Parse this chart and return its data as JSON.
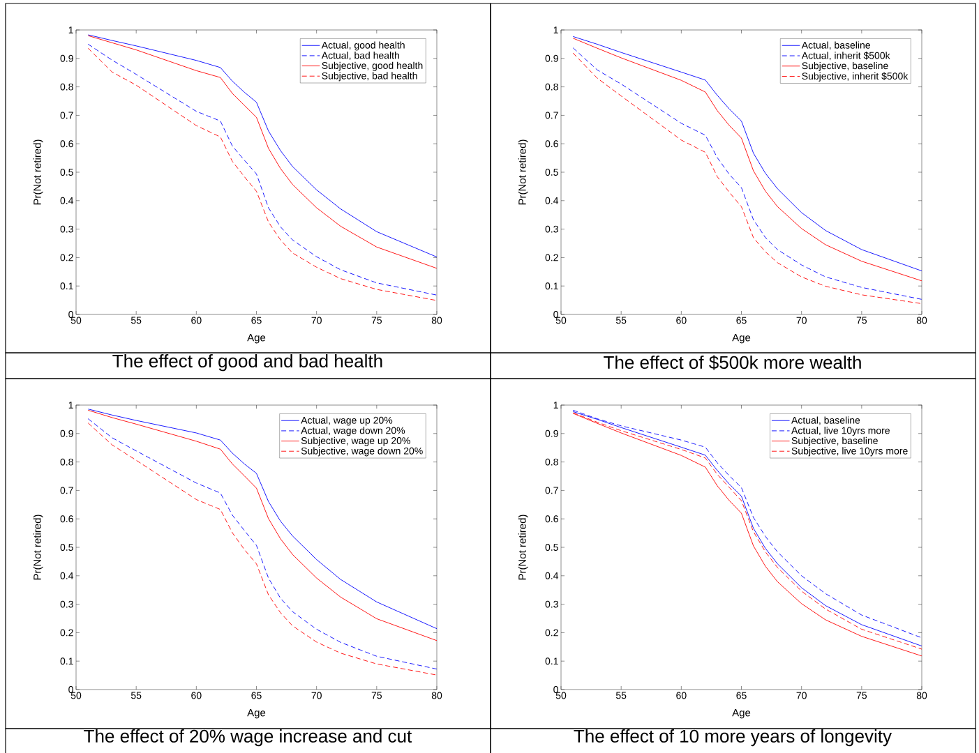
{
  "chart_data": [
    {
      "type": "line",
      "title": "The effect of good and bad health",
      "xlabel": "Age",
      "ylabel": "Pr(Not retired)",
      "xlim": [
        50,
        80
      ],
      "ylim": [
        0,
        1
      ],
      "xticks": [
        50,
        55,
        60,
        65,
        70,
        75,
        80
      ],
      "yticks": [
        0,
        0.1,
        0.2,
        0.3,
        0.4,
        0.5,
        0.6,
        0.7,
        0.8,
        0.9,
        1
      ],
      "legend": "top right",
      "grid": false,
      "x": [
        51,
        53,
        55,
        60,
        62,
        63,
        64,
        65,
        66,
        67,
        68,
        70,
        72,
        75,
        80
      ],
      "series": [
        {
          "name": "Actual, good health",
          "color": "#0000ff",
          "line_style": "solid",
          "values": [
            0.983,
            0.963,
            0.944,
            0.893,
            0.868,
            0.82,
            0.781,
            0.746,
            0.645,
            0.576,
            0.52,
            0.438,
            0.371,
            0.291,
            0.202
          ]
        },
        {
          "name": "Actual, bad health",
          "color": "#0000ff",
          "line_style": "dashed",
          "values": [
            0.95,
            0.894,
            0.844,
            0.714,
            0.68,
            0.592,
            0.542,
            0.494,
            0.375,
            0.308,
            0.262,
            0.203,
            0.157,
            0.111,
            0.068
          ]
        },
        {
          "name": "Subjective, good health",
          "color": "#ff0000",
          "line_style": "solid",
          "values": [
            0.98,
            0.955,
            0.93,
            0.857,
            0.833,
            0.777,
            0.735,
            0.693,
            0.584,
            0.513,
            0.457,
            0.375,
            0.31,
            0.237,
            0.162
          ]
        },
        {
          "name": "Subjective, bad health",
          "color": "#ff0000",
          "line_style": "dashed",
          "values": [
            0.936,
            0.852,
            0.806,
            0.664,
            0.624,
            0.538,
            0.484,
            0.433,
            0.325,
            0.262,
            0.216,
            0.166,
            0.126,
            0.088,
            0.049
          ]
        }
      ]
    },
    {
      "type": "line",
      "title": "The effect of $500k more wealth",
      "xlabel": "Age",
      "ylabel": "Pr(Not retired)",
      "xlim": [
        50,
        80
      ],
      "ylim": [
        0,
        1
      ],
      "xticks": [
        50,
        55,
        60,
        65,
        70,
        75,
        80
      ],
      "yticks": [
        0,
        0.1,
        0.2,
        0.3,
        0.4,
        0.5,
        0.6,
        0.7,
        0.8,
        0.9,
        1
      ],
      "legend": "top right",
      "grid": false,
      "x": [
        51,
        53,
        55,
        60,
        62,
        63,
        64,
        65,
        66,
        67,
        68,
        70,
        72,
        75,
        80
      ],
      "series": [
        {
          "name": "Actual, baseline",
          "color": "#0000ff",
          "line_style": "solid",
          "values": [
            0.977,
            0.95,
            0.921,
            0.852,
            0.824,
            0.77,
            0.722,
            0.68,
            0.567,
            0.496,
            0.442,
            0.358,
            0.295,
            0.228,
            0.153
          ]
        },
        {
          "name": "Actual, inherit $500k",
          "color": "#0000ff",
          "line_style": "dashed",
          "values": [
            0.937,
            0.86,
            0.81,
            0.672,
            0.63,
            0.551,
            0.492,
            0.446,
            0.333,
            0.27,
            0.228,
            0.174,
            0.132,
            0.095,
            0.053
          ]
        },
        {
          "name": "Subjective, baseline",
          "color": "#ff0000",
          "line_style": "solid",
          "values": [
            0.971,
            0.936,
            0.902,
            0.823,
            0.782,
            0.716,
            0.664,
            0.62,
            0.505,
            0.433,
            0.379,
            0.302,
            0.245,
            0.187,
            0.118
          ]
        },
        {
          "name": "Subjective, inherit $500k",
          "color": "#ff0000",
          "line_style": "dashed",
          "values": [
            0.919,
            0.831,
            0.768,
            0.613,
            0.57,
            0.484,
            0.429,
            0.379,
            0.27,
            0.22,
            0.182,
            0.132,
            0.099,
            0.069,
            0.038
          ]
        }
      ]
    },
    {
      "type": "line",
      "title": "The effect of 20% wage increase and cut",
      "xlabel": "Age",
      "ylabel": "Pr(Not retired)",
      "xlim": [
        50,
        80
      ],
      "ylim": [
        0,
        1
      ],
      "xticks": [
        50,
        55,
        60,
        65,
        70,
        75,
        80
      ],
      "yticks": [
        0,
        0.1,
        0.2,
        0.3,
        0.4,
        0.5,
        0.6,
        0.7,
        0.8,
        0.9,
        1
      ],
      "legend": "top right",
      "grid": false,
      "x": [
        51,
        53,
        55,
        60,
        62,
        63,
        64,
        65,
        66,
        67,
        68,
        70,
        72,
        75,
        80
      ],
      "series": [
        {
          "name": "Actual, wage up 20%",
          "color": "#0000ff",
          "line_style": "solid",
          "values": [
            0.986,
            0.965,
            0.946,
            0.902,
            0.877,
            0.831,
            0.793,
            0.76,
            0.661,
            0.592,
            0.54,
            0.457,
            0.387,
            0.308,
            0.214
          ]
        },
        {
          "name": "Actual, wage down 20%",
          "color": "#0000ff",
          "line_style": "dashed",
          "values": [
            0.952,
            0.885,
            0.839,
            0.726,
            0.691,
            0.613,
            0.559,
            0.507,
            0.392,
            0.321,
            0.274,
            0.212,
            0.166,
            0.117,
            0.072
          ]
        },
        {
          "name": "Subjective, wage up 20%",
          "color": "#ff0000",
          "line_style": "solid",
          "values": [
            0.982,
            0.956,
            0.933,
            0.873,
            0.845,
            0.793,
            0.751,
            0.708,
            0.601,
            0.53,
            0.475,
            0.392,
            0.325,
            0.249,
            0.172
          ]
        },
        {
          "name": "Subjective, wage down 20%",
          "color": "#ff0000",
          "line_style": "dashed",
          "values": [
            0.937,
            0.86,
            0.806,
            0.668,
            0.633,
            0.551,
            0.492,
            0.442,
            0.333,
            0.27,
            0.224,
            0.167,
            0.128,
            0.09,
            0.051
          ]
        }
      ]
    },
    {
      "type": "line",
      "title": "The effect of 10 more years of longevity",
      "xlabel": "Age",
      "ylabel": "Pr(Not retired)",
      "xlim": [
        50,
        80
      ],
      "ylim": [
        0,
        1
      ],
      "xticks": [
        50,
        55,
        60,
        65,
        70,
        75,
        80
      ],
      "yticks": [
        0,
        0.1,
        0.2,
        0.3,
        0.4,
        0.5,
        0.6,
        0.7,
        0.8,
        0.9,
        1
      ],
      "legend": "top right",
      "grid": false,
      "x": [
        51,
        53,
        55,
        60,
        62,
        63,
        64,
        65,
        66,
        67,
        68,
        70,
        72,
        75,
        80
      ],
      "series": [
        {
          "name": "Actual, baseline",
          "color": "#0000ff",
          "line_style": "solid",
          "values": [
            0.977,
            0.95,
            0.921,
            0.852,
            0.824,
            0.77,
            0.722,
            0.68,
            0.567,
            0.496,
            0.442,
            0.358,
            0.295,
            0.228,
            0.153
          ]
        },
        {
          "name": "Actual, live 10yrs more",
          "color": "#0000ff",
          "line_style": "dashed",
          "values": [
            0.982,
            0.952,
            0.927,
            0.877,
            0.852,
            0.797,
            0.751,
            0.71,
            0.605,
            0.538,
            0.484,
            0.4,
            0.337,
            0.262,
            0.182
          ]
        },
        {
          "name": "Subjective, baseline",
          "color": "#ff0000",
          "line_style": "solid",
          "values": [
            0.971,
            0.936,
            0.902,
            0.823,
            0.782,
            0.716,
            0.664,
            0.62,
            0.505,
            0.433,
            0.379,
            0.302,
            0.245,
            0.187,
            0.118
          ]
        },
        {
          "name": "Subjective, live 10yrs more",
          "color": "#ff0000",
          "line_style": "dashed",
          "values": [
            0.973,
            0.94,
            0.91,
            0.844,
            0.814,
            0.756,
            0.71,
            0.664,
            0.555,
            0.484,
            0.429,
            0.346,
            0.283,
            0.212,
            0.142
          ]
        }
      ]
    }
  ]
}
